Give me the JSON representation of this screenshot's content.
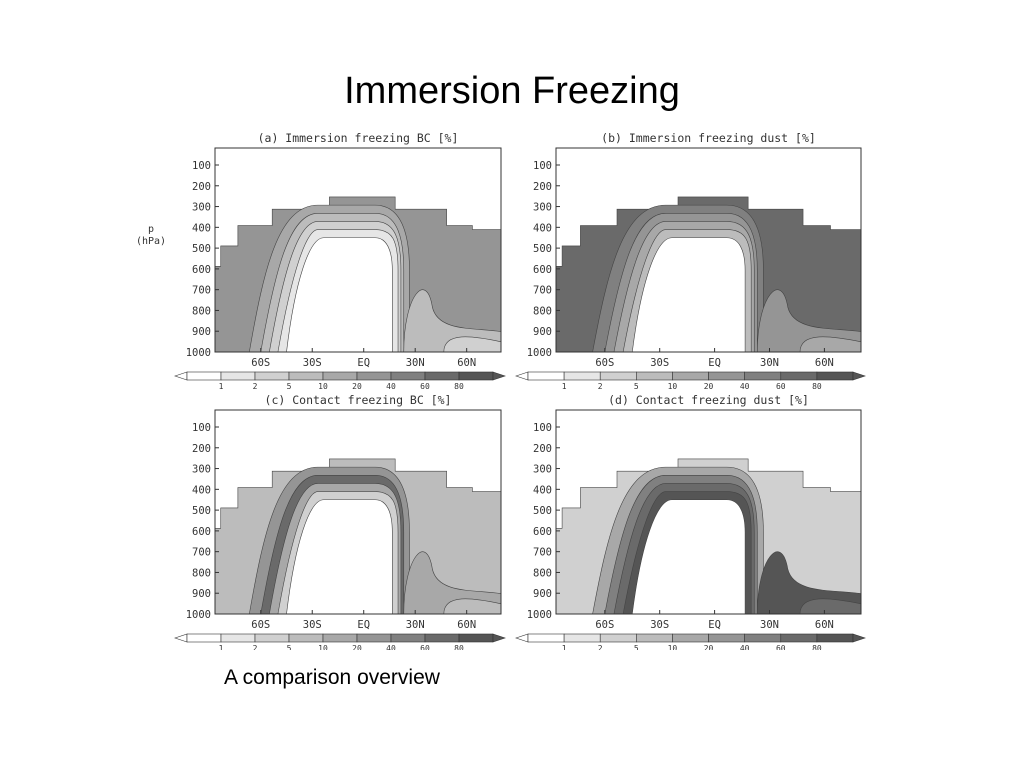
{
  "slide": {
    "title": "Immersion Freezing",
    "caption": "A comparison overview"
  },
  "palette": {
    "levels": [
      "#ffffff",
      "#e6e6e6",
      "#d0d0d0",
      "#bcbcbc",
      "#a8a8a8",
      "#959595",
      "#808080",
      "#6a6a6a",
      "#555555"
    ],
    "line": "#444444"
  },
  "chart_data": [
    {
      "type": "heatmap",
      "title": "(a) Immersion freezing BC [%]",
      "ylabel": "p\n(hPa)",
      "yticks": [
        "100",
        "200",
        "300",
        "400",
        "500",
        "600",
        "700",
        "800",
        "900",
        "1000"
      ],
      "xticks": [
        "60S",
        "30S",
        "EQ",
        "30N",
        "60N"
      ],
      "colorbar_labels": [
        "1",
        "2",
        "5",
        "10",
        "20",
        "40",
        "60",
        "80"
      ],
      "outer_level": 5,
      "inner_levels": [
        4,
        3,
        2,
        1
      ],
      "lobe_levels": [
        3,
        2
      ]
    },
    {
      "type": "heatmap",
      "title": "(b) Immersion freezing dust [%]",
      "yticks": [
        "100",
        "200",
        "300",
        "400",
        "500",
        "600",
        "700",
        "800",
        "900",
        "1000"
      ],
      "xticks": [
        "60S",
        "30S",
        "EQ",
        "30N",
        "60N"
      ],
      "colorbar_labels": [
        "1",
        "2",
        "5",
        "10",
        "20",
        "40",
        "60",
        "80"
      ],
      "outer_level": 7,
      "inner_levels": [
        6,
        5,
        4,
        3
      ],
      "lobe_levels": [
        5,
        4
      ]
    },
    {
      "type": "heatmap",
      "title": "(c) Contact freezing BC [%]",
      "yticks": [
        "100",
        "200",
        "300",
        "400",
        "500",
        "600",
        "700",
        "800",
        "900",
        "1000"
      ],
      "xticks": [
        "60S",
        "30S",
        "EQ",
        "30N",
        "60N"
      ],
      "colorbar_labels": [
        "1",
        "2",
        "5",
        "10",
        "20",
        "40",
        "60",
        "80"
      ],
      "outer_level": 3,
      "inner_levels": [
        5,
        7,
        4,
        2
      ],
      "lobe_levels": [
        4,
        3
      ]
    },
    {
      "type": "heatmap",
      "title": "(d) Contact freezing dust [%]",
      "yticks": [
        "100",
        "200",
        "300",
        "400",
        "500",
        "600",
        "700",
        "800",
        "900",
        "1000"
      ],
      "xticks": [
        "60S",
        "30S",
        "EQ",
        "30N",
        "60N"
      ],
      "colorbar_labels": [
        "1",
        "2",
        "5",
        "10",
        "20",
        "40",
        "60",
        "80"
      ],
      "outer_level": 2,
      "inner_levels": [
        4,
        6,
        7,
        8
      ],
      "lobe_levels": [
        8,
        7
      ]
    }
  ]
}
